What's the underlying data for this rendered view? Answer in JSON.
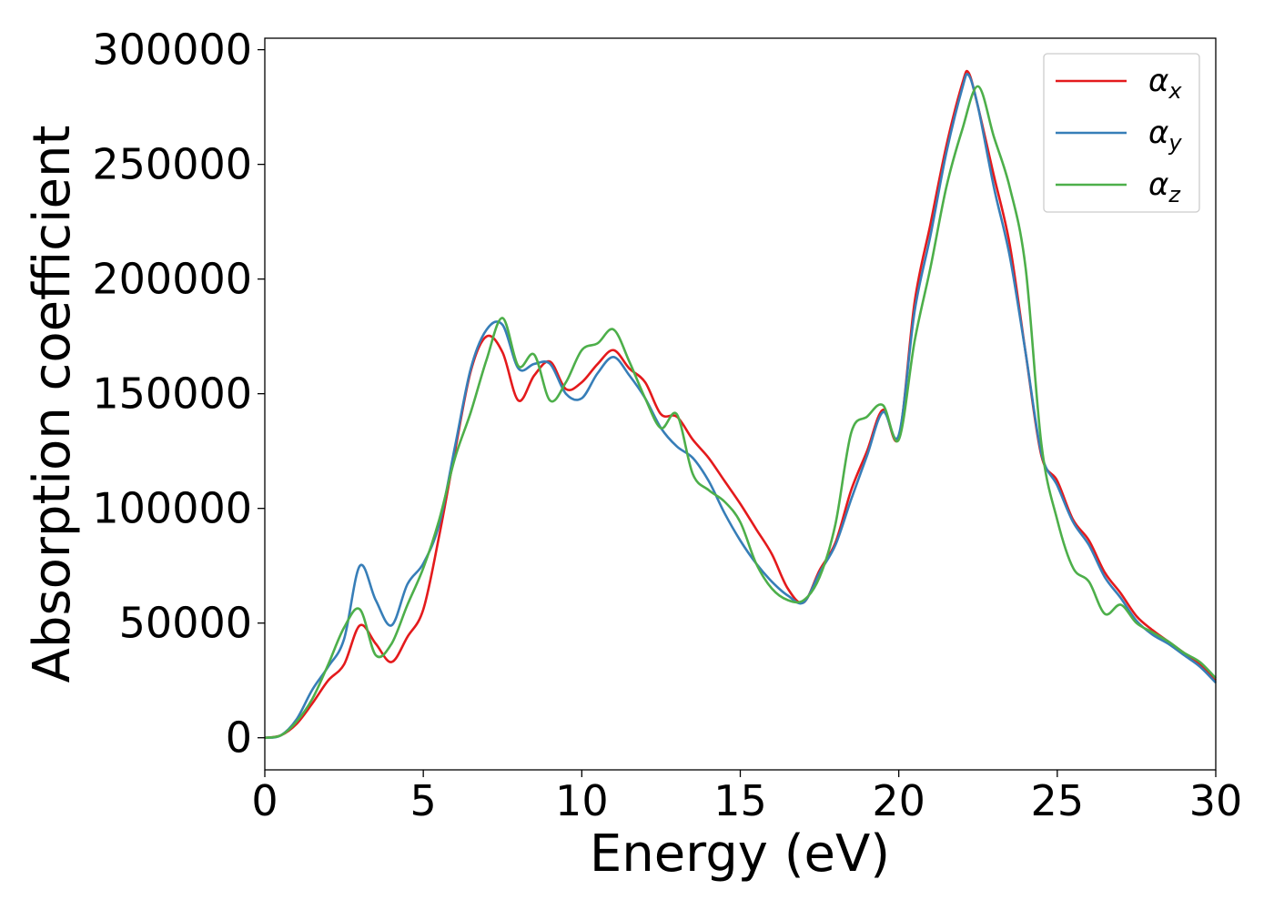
{
  "chart_data": {
    "type": "line",
    "xlabel": "Energy (eV)",
    "ylabel": "Absorption coefficient",
    "xlim": [
      0,
      30
    ],
    "ylim": [
      -14000,
      305000
    ],
    "xticks": [
      "0",
      "5",
      "10",
      "15",
      "20",
      "25",
      "30"
    ],
    "yticks": [
      "0",
      "50000",
      "100000",
      "150000",
      "200000",
      "250000",
      "300000"
    ],
    "grid": false,
    "legend_position": "top-right",
    "series": [
      {
        "name": "αx",
        "symbol": "α",
        "subscript": "x",
        "color": "#e41a1c",
        "x": [
          0,
          0.5,
          1.0,
          1.5,
          2.0,
          2.5,
          3.0,
          3.5,
          4.0,
          4.5,
          5.0,
          5.5,
          6.0,
          6.5,
          7.0,
          7.5,
          8.0,
          8.5,
          9.0,
          9.5,
          10.0,
          10.5,
          11.0,
          11.5,
          12.0,
          12.5,
          13.0,
          13.5,
          14.0,
          14.5,
          15.0,
          15.5,
          16.0,
          16.5,
          17.0,
          17.5,
          18.0,
          18.5,
          19.0,
          19.5,
          20.0,
          20.5,
          21.0,
          21.5,
          22.0,
          22.2,
          22.5,
          23.0,
          23.5,
          24.0,
          24.5,
          25.0,
          25.5,
          26.0,
          26.5,
          27.0,
          27.5,
          28.0,
          28.5,
          29.0,
          29.5,
          30.0
        ],
        "y": [
          0,
          1000,
          6000,
          15000,
          25000,
          32000,
          49000,
          41000,
          33000,
          44000,
          56000,
          88000,
          125000,
          160000,
          175000,
          168000,
          147000,
          158000,
          164000,
          152000,
          155000,
          163000,
          169000,
          161000,
          155000,
          141000,
          140000,
          130000,
          122000,
          112000,
          102000,
          91000,
          80000,
          65000,
          59000,
          73000,
          85000,
          108000,
          125000,
          143000,
          131000,
          190000,
          224000,
          258000,
          285000,
          290000,
          275000,
          245000,
          215000,
          168000,
          123000,
          112000,
          95000,
          86000,
          72000,
          63000,
          53000,
          47000,
          42000,
          37000,
          32000,
          25000
        ]
      },
      {
        "name": "αy",
        "symbol": "α",
        "subscript": "y",
        "color": "#377eb8",
        "x": [
          0,
          0.5,
          1.0,
          1.5,
          2.0,
          2.5,
          3.0,
          3.5,
          4.0,
          4.5,
          5.0,
          5.5,
          6.0,
          6.5,
          7.0,
          7.5,
          8.0,
          8.5,
          9.0,
          9.5,
          10.0,
          10.5,
          11.0,
          11.5,
          12.0,
          12.5,
          13.0,
          13.5,
          14.0,
          14.5,
          15.0,
          15.5,
          16.0,
          16.5,
          17.0,
          17.5,
          18.0,
          18.5,
          19.0,
          19.5,
          20.0,
          20.5,
          21.0,
          21.5,
          22.0,
          22.2,
          22.5,
          23.0,
          23.5,
          24.0,
          24.5,
          25.0,
          25.5,
          26.0,
          26.5,
          27.0,
          27.5,
          28.0,
          28.5,
          29.0,
          29.5,
          30.0
        ],
        "y": [
          0,
          1000,
          8000,
          21000,
          31000,
          43000,
          75000,
          60000,
          49000,
          67000,
          76000,
          93000,
          127000,
          161000,
          178000,
          180000,
          161000,
          163000,
          163000,
          150000,
          148000,
          159000,
          166000,
          158000,
          148000,
          135000,
          127000,
          122000,
          112000,
          98000,
          86000,
          76000,
          68000,
          62000,
          59000,
          72000,
          84000,
          104000,
          123000,
          142000,
          132000,
          186000,
          219000,
          255000,
          283000,
          289000,
          275000,
          240000,
          210000,
          168000,
          124000,
          110000,
          94000,
          84000,
          70000,
          61000,
          51000,
          45000,
          41000,
          36000,
          31000,
          24000
        ]
      },
      {
        "name": "αz",
        "symbol": "α",
        "subscript": "z",
        "color": "#4daf4a",
        "x": [
          0,
          0.5,
          1.0,
          1.5,
          2.0,
          2.5,
          3.0,
          3.5,
          4.0,
          4.5,
          5.0,
          5.5,
          6.0,
          6.5,
          7.0,
          7.5,
          8.0,
          8.5,
          9.0,
          9.5,
          10.0,
          10.5,
          11.0,
          11.5,
          12.0,
          12.5,
          13.0,
          13.5,
          14.0,
          14.5,
          15.0,
          15.5,
          16.0,
          16.5,
          17.0,
          17.5,
          18.0,
          18.5,
          19.0,
          19.5,
          20.0,
          20.5,
          21.0,
          21.5,
          22.0,
          22.5,
          23.0,
          23.5,
          24.0,
          24.5,
          25.0,
          25.5,
          26.0,
          26.5,
          27.0,
          27.5,
          28.0,
          28.5,
          29.0,
          29.5,
          30.0
        ],
        "y": [
          0,
          1000,
          7000,
          17000,
          32000,
          48000,
          56000,
          36000,
          41000,
          58000,
          74000,
          95000,
          122000,
          142000,
          165000,
          183000,
          162000,
          167000,
          147000,
          155000,
          169000,
          172000,
          178000,
          164000,
          148000,
          135000,
          141000,
          115000,
          108000,
          103000,
          94000,
          76000,
          65000,
          60000,
          60000,
          70000,
          93000,
          133000,
          140000,
          145000,
          130000,
          173000,
          205000,
          240000,
          265000,
          284000,
          262000,
          240000,
          205000,
          128000,
          95000,
          74000,
          68000,
          54000,
          58000,
          50000,
          46000,
          42000,
          37000,
          33000,
          26000
        ]
      }
    ]
  }
}
